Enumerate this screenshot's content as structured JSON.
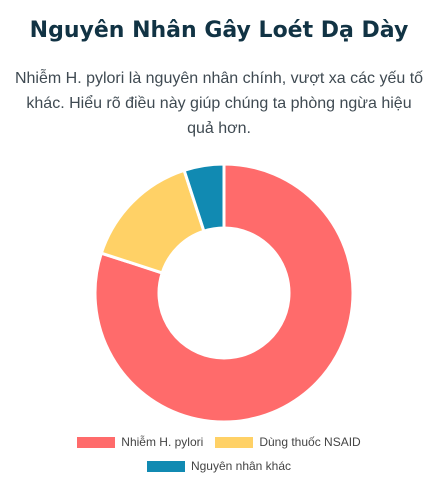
{
  "header": {
    "title": "Nguyên Nhân Gây Loét Dạ Dày",
    "subtitle": "Nhiễm H. pylori là nguyên nhân chính, vượt xa các yếu tố khác. Hiểu rõ điều này giúp chúng ta phòng ngừa hiệu quả hơn."
  },
  "chart_data": {
    "type": "pie",
    "variant": "doughnut",
    "categories": [
      "Nhiễm H. pylori",
      "Dùng thuốc NSAID",
      "Nguyên nhân khác"
    ],
    "values": [
      80,
      15,
      5
    ],
    "colors": [
      "#ff6b6b",
      "#ffd166",
      "#118ab2"
    ],
    "legend_position": "bottom"
  }
}
